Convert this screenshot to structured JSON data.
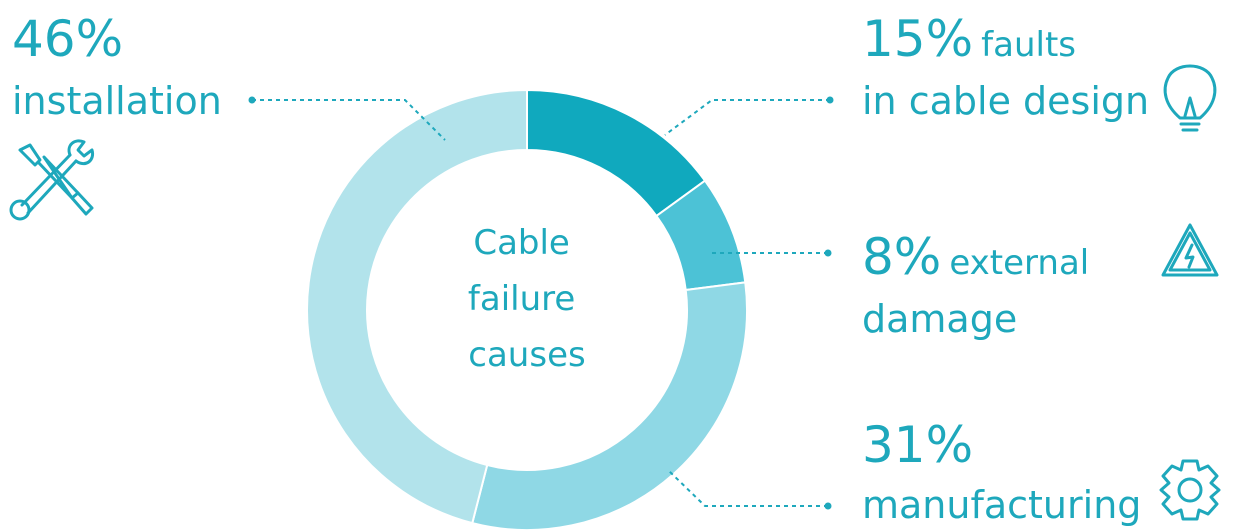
{
  "chart_data": {
    "type": "donut",
    "title": "Cable failure causes",
    "categories": [
      "faults in cable design",
      "external damage",
      "manufacturing",
      "installation"
    ],
    "values": [
      15,
      8,
      31,
      46
    ],
    "value_labels": [
      "15%",
      "8%",
      "31%",
      "46%"
    ],
    "colors": [
      "#10a9be",
      "#4cc2d6",
      "#8fd8e5",
      "#b2e3eb"
    ]
  }
}
